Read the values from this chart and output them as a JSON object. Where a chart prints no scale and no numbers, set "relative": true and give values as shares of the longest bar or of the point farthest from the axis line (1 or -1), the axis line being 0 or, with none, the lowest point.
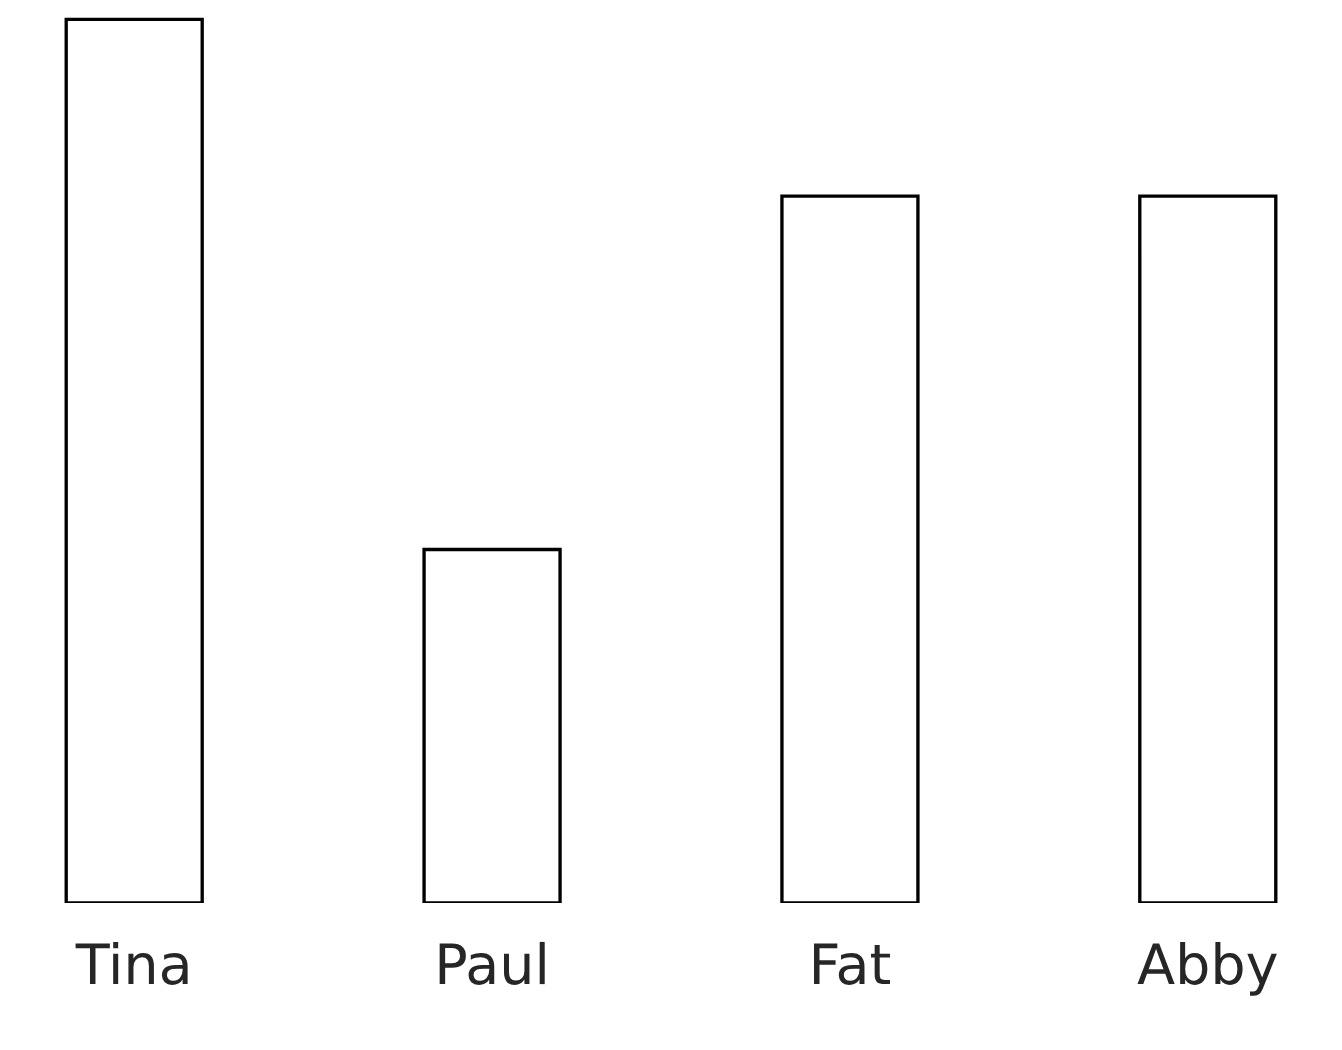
{
  "chart_data": {
    "type": "bar",
    "relative": true,
    "color": "#ffffff",
    "categories": [
      "Tina",
      "Paul",
      "Fat",
      "Abby"
    ],
    "values": [
      1,
      0.4,
      0.8,
      0.8
    ]
  }
}
